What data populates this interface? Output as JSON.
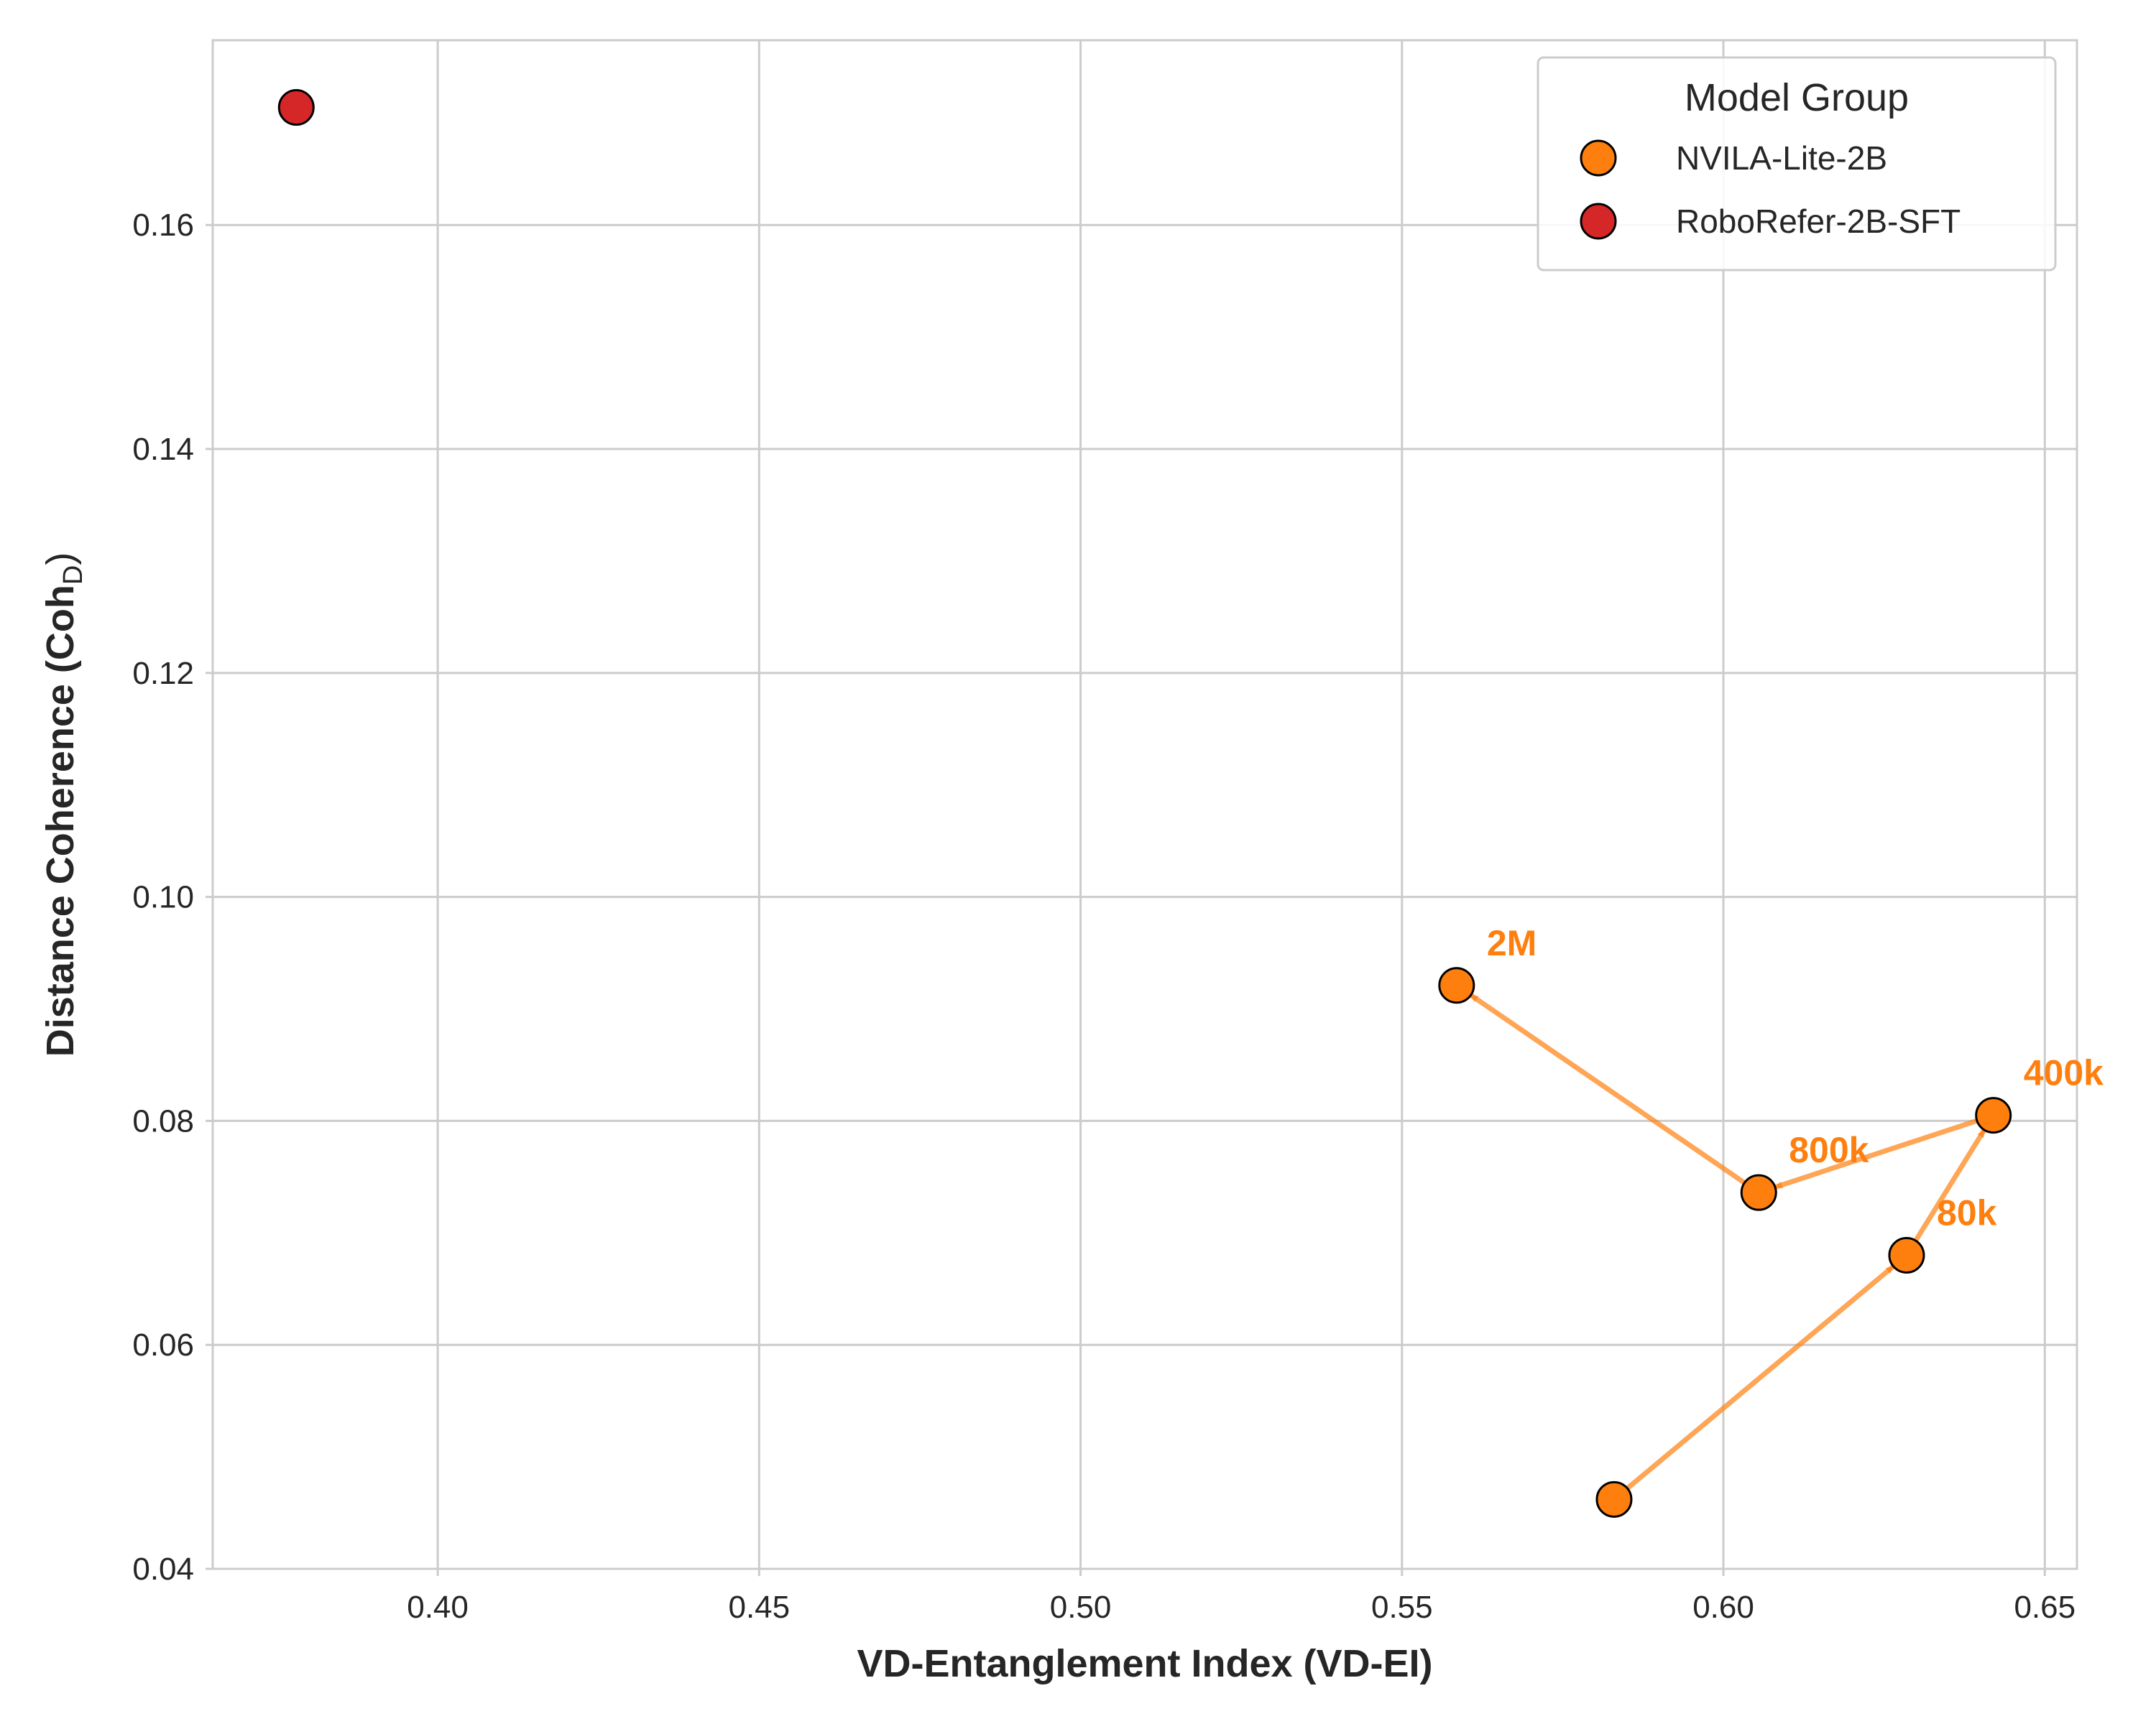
{
  "chart_data": {
    "type": "scatter",
    "xlabel": "VD-Entanglement Index (VD-EI)",
    "ylabel": "Distance Coherence (Coh",
    "ylabel_subscript": "D",
    "ylabel_close": ")",
    "xlim": [
      0.365,
      0.655
    ],
    "ylim": [
      0.04,
      0.1765
    ],
    "xticks": [
      0.4,
      0.45,
      0.5,
      0.55,
      0.6,
      0.65
    ],
    "yticks": [
      0.04,
      0.06,
      0.08,
      0.1,
      0.12,
      0.14,
      0.16
    ],
    "xtick_labels": [
      "0.40",
      "0.45",
      "0.50",
      "0.55",
      "0.60",
      "0.65"
    ],
    "ytick_labels": [
      "0.04",
      "0.06",
      "0.08",
      "0.10",
      "0.12",
      "0.14",
      "0.16"
    ],
    "grid": true,
    "legend": {
      "title": "Model Group",
      "position": "top-right",
      "entries": [
        {
          "name": "NVILA-Lite-2B",
          "color": "#ff7f0e"
        },
        {
          "name": "RoboRefer-2B-SFT",
          "color": "#d62728"
        }
      ]
    },
    "series": [
      {
        "name": "NVILA-Lite-2B",
        "color": "#ff7f0e",
        "points": [
          {
            "x": 0.583,
            "y": 0.0462,
            "label": ""
          },
          {
            "x": 0.6285,
            "y": 0.068,
            "label": "80k"
          },
          {
            "x": 0.642,
            "y": 0.0805,
            "label": "400k"
          },
          {
            "x": 0.6055,
            "y": 0.0736,
            "label": "800k"
          },
          {
            "x": 0.5585,
            "y": 0.0921,
            "label": "2M"
          }
        ],
        "connected_with_arrows": true
      },
      {
        "name": "RoboRefer-2B-SFT",
        "color": "#d62728",
        "points": [
          {
            "x": 0.378,
            "y": 0.1705,
            "label": ""
          }
        ]
      }
    ]
  }
}
